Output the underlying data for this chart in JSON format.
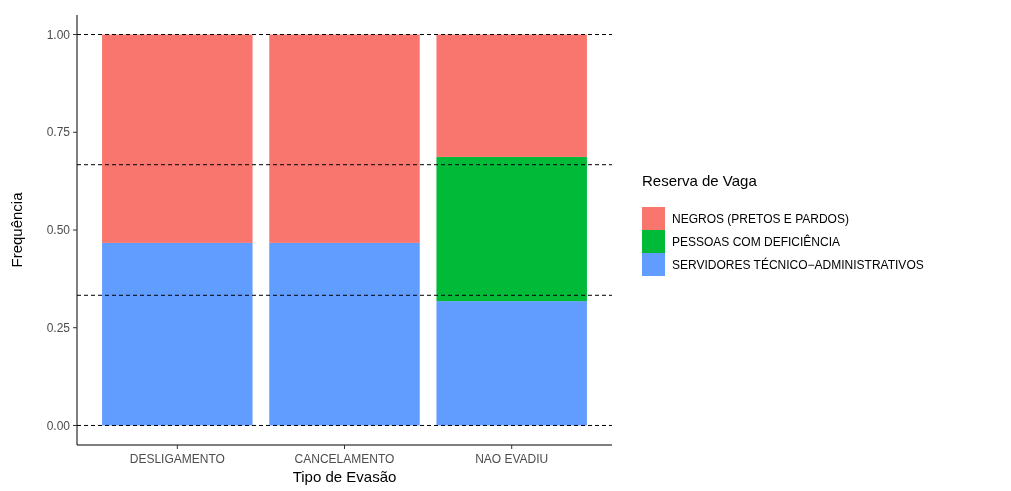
{
  "chart_data": {
    "type": "bar",
    "stacked": true,
    "xlabel": "Tipo de Evasão",
    "ylabel": "Frequência",
    "legend_title": "Reserva de Vaga",
    "legend": "right",
    "categories": [
      "DESLIGAMENTO",
      "CANCELAMENTO",
      "NAO EVADIU"
    ],
    "series": [
      {
        "name": "SERVIDORES TÉCNICO−ADMINISTRATIVOS",
        "color": "#619cff",
        "values": [
          0.467,
          0.467,
          0.318
        ]
      },
      {
        "name": "PESSOAS COM DEFICIÊNCIA",
        "color": "#00ba38",
        "values": [
          0,
          0,
          0.369
        ]
      },
      {
        "name": "NEGROS (PRETOS E PARDOS)",
        "color": "#f8766d",
        "values": [
          0.533,
          0.533,
          0.313
        ]
      }
    ],
    "ylim": [
      -0.05,
      1.05
    ],
    "yticks": [
      {
        "value": 0,
        "label": "0.00"
      },
      {
        "value": 0.25,
        "label": "0.25"
      },
      {
        "value": 0.5,
        "label": "0.50"
      },
      {
        "value": 0.75,
        "label": "0.75"
      },
      {
        "value": 1,
        "label": "1.00"
      }
    ],
    "ref_lines": [
      {
        "axis": "y",
        "value": 0,
        "line_style": "dashed",
        "color": "#000000"
      },
      {
        "axis": "y",
        "value": 0.333,
        "line_style": "dashed",
        "color": "#000000"
      },
      {
        "axis": "y",
        "value": 0.667,
        "line_style": "dashed",
        "color": "#000000"
      },
      {
        "axis": "y",
        "value": 1,
        "line_style": "dashed",
        "color": "#000000"
      }
    ]
  }
}
